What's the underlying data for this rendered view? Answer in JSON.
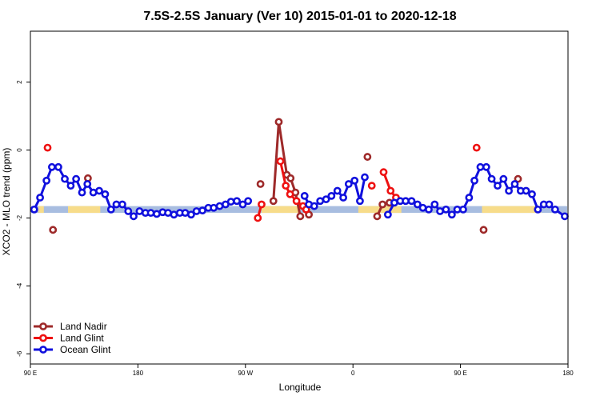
{
  "chart_data": {
    "type": "line",
    "title": "7.5S-2.5S January (Ver 10)   2015-01-01 to 2020-12-18",
    "xlabel": "Longitude",
    "ylabel": "XCO2 - MLO trend (ppm)",
    "xlim": [
      0,
      1
    ],
    "ylim": [
      -6.3,
      3.5
    ],
    "x_ticks": [
      {
        "value": 0.0,
        "label": "90 E"
      },
      {
        "value": 0.2,
        "label": "180"
      },
      {
        "value": 0.4,
        "label": "90 W"
      },
      {
        "value": 0.6,
        "label": "0"
      },
      {
        "value": 0.8,
        "label": "90 E"
      },
      {
        "value": 1.0,
        "label": "180"
      }
    ],
    "y_ticks": [
      -6,
      -4,
      -2,
      0,
      2
    ],
    "grid": false,
    "legend_position": "bottom-left",
    "surface_band": {
      "y_range": [
        -1.85,
        -1.65
      ],
      "ocean_color": "#a8bde0",
      "land_color": "#f7dc8a",
      "land_segments": [
        [
          0.015,
          0.025
        ],
        [
          0.07,
          0.13
        ],
        [
          0.43,
          0.5
        ],
        [
          0.61,
          0.69
        ],
        [
          0.84,
          0.95
        ]
      ]
    },
    "series": [
      {
        "name": "Land Nadir",
        "color": "#9e2a2a",
        "segments": [
          [
            [
              0.042,
              -2.35
            ]
          ],
          [
            [
              0.107,
              -0.83
            ]
          ],
          [
            [
              0.428,
              -1.0
            ]
          ],
          [
            [
              0.452,
              -1.5
            ],
            [
              0.462,
              0.83
            ],
            [
              0.477,
              -0.73
            ],
            [
              0.484,
              -0.83
            ],
            [
              0.493,
              -1.25
            ],
            [
              0.502,
              -1.95
            ]
          ],
          [
            [
              0.518,
              -1.9
            ]
          ],
          [
            [
              0.627,
              -0.2
            ]
          ],
          [
            [
              0.645,
              -1.95
            ],
            [
              0.655,
              -1.6
            ],
            [
              0.668,
              -1.55
            ]
          ],
          [
            [
              0.843,
              -2.35
            ]
          ],
          [
            [
              0.907,
              -0.85
            ]
          ]
        ]
      },
      {
        "name": "Land Glint",
        "color": "#ee1111",
        "segments": [
          [
            [
              0.032,
              0.07
            ]
          ],
          [
            [
              0.423,
              -2.0
            ],
            [
              0.43,
              -1.6
            ]
          ],
          [
            [
              0.465,
              -0.33
            ],
            [
              0.475,
              -1.05
            ],
            [
              0.483,
              -1.3
            ],
            [
              0.495,
              -1.5
            ],
            [
              0.507,
              -1.65
            ],
            [
              0.513,
              -1.75
            ]
          ],
          [
            [
              0.635,
              -1.05
            ]
          ],
          [
            [
              0.657,
              -0.65
            ],
            [
              0.67,
              -1.2
            ],
            [
              0.68,
              -1.4
            ]
          ],
          [
            [
              0.83,
              0.07
            ]
          ]
        ]
      },
      {
        "name": "Ocean Glint",
        "color": "#1010dd",
        "segments": [
          [
            [
              0.007,
              -1.75
            ],
            [
              0.018,
              -1.4
            ],
            [
              0.03,
              -0.9
            ],
            [
              0.04,
              -0.5
            ],
            [
              0.052,
              -0.5
            ],
            [
              0.064,
              -0.85
            ],
            [
              0.075,
              -1.05
            ],
            [
              0.085,
              -0.85
            ],
            [
              0.096,
              -1.25
            ],
            [
              0.106,
              -1.0
            ],
            [
              0.117,
              -1.25
            ],
            [
              0.128,
              -1.2
            ],
            [
              0.139,
              -1.3
            ],
            [
              0.15,
              -1.75
            ],
            [
              0.16,
              -1.6
            ],
            [
              0.171,
              -1.6
            ],
            [
              0.182,
              -1.8
            ],
            [
              0.192,
              -1.95
            ],
            [
              0.203,
              -1.8
            ],
            [
              0.214,
              -1.85
            ],
            [
              0.224,
              -1.85
            ],
            [
              0.235,
              -1.88
            ],
            [
              0.246,
              -1.83
            ],
            [
              0.256,
              -1.85
            ],
            [
              0.267,
              -1.9
            ],
            [
              0.278,
              -1.85
            ],
            [
              0.288,
              -1.85
            ],
            [
              0.299,
              -1.9
            ],
            [
              0.309,
              -1.8
            ],
            [
              0.32,
              -1.78
            ],
            [
              0.331,
              -1.7
            ],
            [
              0.341,
              -1.7
            ],
            [
              0.352,
              -1.65
            ],
            [
              0.363,
              -1.6
            ],
            [
              0.373,
              -1.52
            ],
            [
              0.384,
              -1.5
            ],
            [
              0.395,
              -1.6
            ],
            [
              0.405,
              -1.5
            ]
          ],
          [
            [
              0.51,
              -1.35
            ],
            [
              0.518,
              -1.6
            ],
            [
              0.528,
              -1.65
            ],
            [
              0.539,
              -1.5
            ],
            [
              0.55,
              -1.45
            ],
            [
              0.56,
              -1.35
            ],
            [
              0.571,
              -1.2
            ],
            [
              0.582,
              -1.4
            ],
            [
              0.592,
              -1.0
            ],
            [
              0.603,
              -0.9
            ],
            [
              0.613,
              -1.5
            ],
            [
              0.622,
              -0.8
            ]
          ],
          [
            [
              0.665,
              -1.9
            ],
            [
              0.677,
              -1.55
            ],
            [
              0.688,
              -1.5
            ],
            [
              0.698,
              -1.5
            ],
            [
              0.709,
              -1.5
            ],
            [
              0.72,
              -1.6
            ],
            [
              0.73,
              -1.7
            ],
            [
              0.741,
              -1.75
            ],
            [
              0.752,
              -1.6
            ],
            [
              0.762,
              -1.8
            ],
            [
              0.773,
              -1.75
            ],
            [
              0.784,
              -1.9
            ],
            [
              0.794,
              -1.75
            ],
            [
              0.805,
              -1.75
            ],
            [
              0.816,
              -1.4
            ],
            [
              0.826,
              -0.9
            ],
            [
              0.837,
              -0.5
            ],
            [
              0.848,
              -0.5
            ],
            [
              0.858,
              -0.85
            ],
            [
              0.869,
              -1.05
            ],
            [
              0.88,
              -0.85
            ],
            [
              0.89,
              -1.2
            ],
            [
              0.901,
              -1.0
            ],
            [
              0.912,
              -1.2
            ],
            [
              0.922,
              -1.2
            ],
            [
              0.933,
              -1.3
            ],
            [
              0.944,
              -1.75
            ],
            [
              0.955,
              -1.6
            ],
            [
              0.965,
              -1.6
            ],
            [
              0.976,
              -1.75
            ],
            [
              0.994,
              -1.95
            ]
          ]
        ]
      }
    ]
  }
}
